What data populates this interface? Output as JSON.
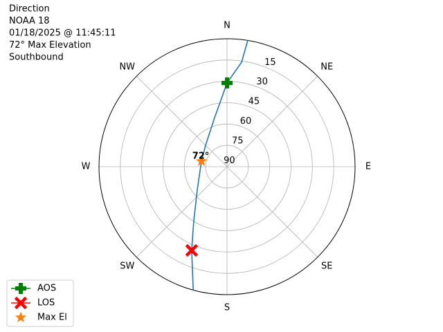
{
  "chart_data": {
    "type": "polar",
    "title_lines": [
      "Direction",
      "NOAA 18",
      "01/18/2025 @ 11:45:11",
      "72° Max Elevation",
      "Southbound"
    ],
    "rlim": [
      90,
      0
    ],
    "rticks": [
      15,
      30,
      45,
      60,
      75,
      90
    ],
    "thetaticks": [
      {
        "value": 0,
        "label": "N"
      },
      {
        "value": 45,
        "label": "NE"
      },
      {
        "value": 90,
        "label": "E"
      },
      {
        "value": 135,
        "label": "SE"
      },
      {
        "value": 180,
        "label": "S"
      },
      {
        "value": 225,
        "label": "SW"
      },
      {
        "value": 270,
        "label": "W"
      },
      {
        "value": 315,
        "label": "NW"
      }
    ],
    "grid": true,
    "track": {
      "color": "#1f77b4",
      "theta": [
        9.3,
        7.9,
        0,
        345.8,
        315,
        282.2,
        231.7,
        211.3,
        202.9,
        195.3
      ],
      "values": [
        0,
        15.8,
        31.1,
        54.4,
        68.7,
        71.6,
        63.3,
        45,
        26.1,
        0
      ]
    },
    "markers": [
      {
        "name": "AOS",
        "color": "#008000",
        "symbol": "plus",
        "theta": 0,
        "value": 31.1
      },
      {
        "name": "LOS",
        "color": "#ff0000",
        "symbol": "x",
        "theta": 202.9,
        "value": 26.1
      },
      {
        "name": "Max El",
        "color": "#ff7f0e",
        "symbol": "star",
        "theta": 282.2,
        "value": 71.6
      }
    ],
    "annotation": "72°",
    "legend": "lower left"
  }
}
